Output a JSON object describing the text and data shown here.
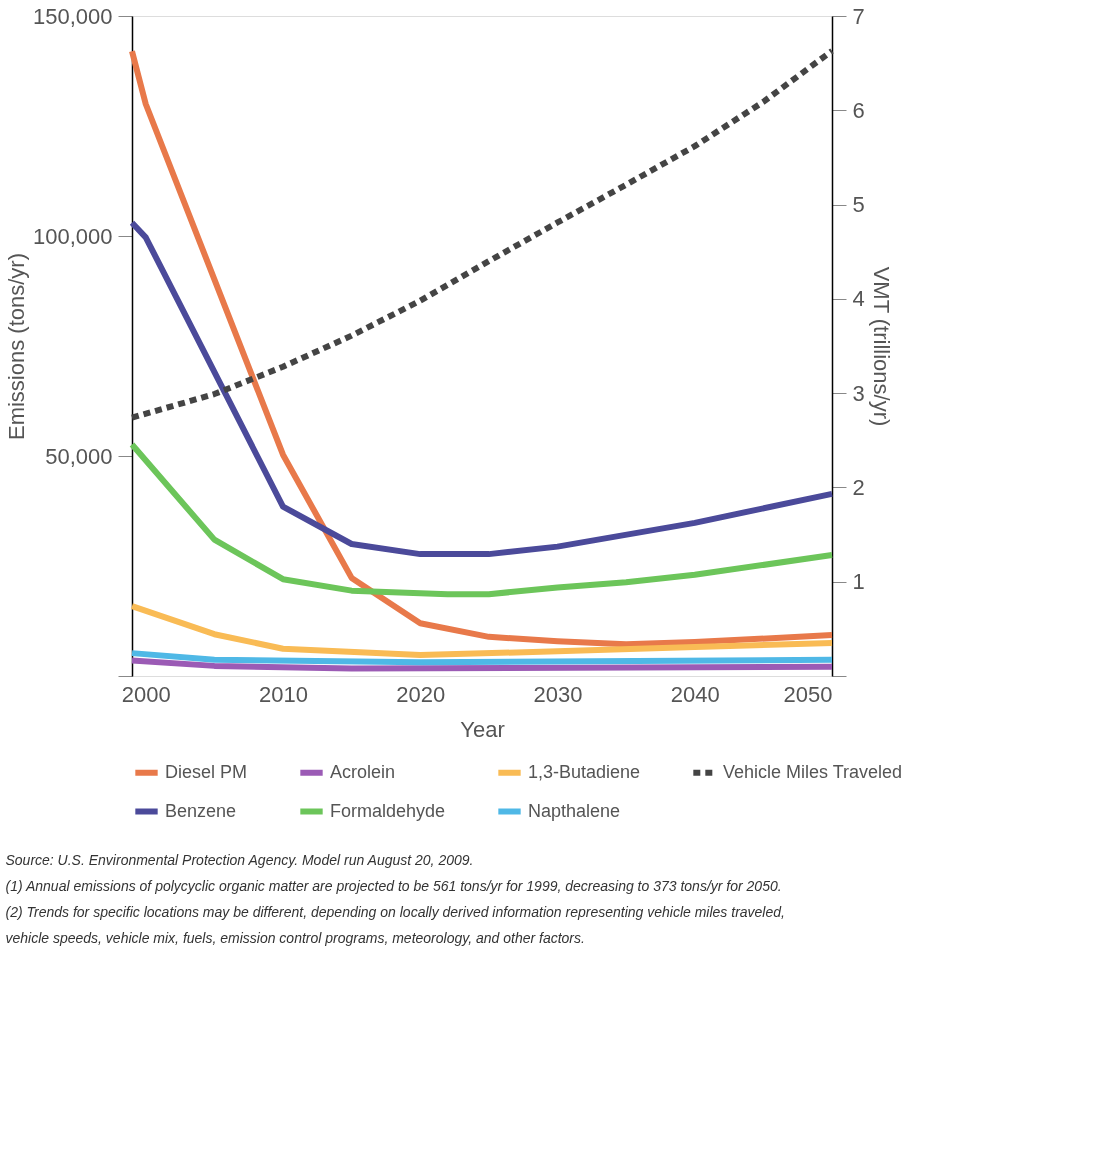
{
  "chart_data": {
    "type": "line",
    "xlabel": "Year",
    "ylabel": "Emissions (tons/yr)",
    "y2label": "VMT (trillions/yr)",
    "xlim": [
      1999,
      2050
    ],
    "xticks": [
      2000,
      2010,
      2020,
      2030,
      2040,
      2050
    ],
    "ylim": [
      0,
      150000
    ],
    "yticks": [
      {
        "value": 0,
        "label": null
      },
      {
        "value": 50000,
        "label": "50,000"
      },
      {
        "value": 100000,
        "label": "100,000"
      },
      {
        "value": 150000,
        "label": "150,000"
      }
    ],
    "y2lim": [
      0,
      7
    ],
    "y2ticks": [
      {
        "value": 0,
        "label": null
      },
      1,
      2,
      3,
      4,
      5,
      6,
      7
    ],
    "grid": false,
    "legend": "bottom",
    "line_style": "solid",
    "marker": "none",
    "series": [
      {
        "name": "Diesel PM",
        "color": "#e8794a",
        "x": [
          1999,
          2000,
          2010,
          2015,
          2020,
          2025,
          2030,
          2035,
          2040,
          2050
        ],
        "values": [
          142000,
          130000,
          50300,
          22300,
          12000,
          8900,
          7900,
          7200,
          7700,
          9300
        ]
      },
      {
        "name": "Acrolein",
        "color": "#9b5bb5",
        "x": [
          1999,
          2005,
          2015,
          2050
        ],
        "values": [
          3500,
          2300,
          1700,
          2100
        ]
      },
      {
        "name": "1,3-Butadiene",
        "color": "#f9bb55",
        "x": [
          1999,
          2005,
          2010,
          2020,
          2030,
          2040,
          2050
        ],
        "values": [
          15900,
          9500,
          6200,
          4800,
          5600,
          6600,
          7500
        ]
      },
      {
        "name": "Vehicle Miles Traveled",
        "color": "#444444",
        "axis": "y2",
        "line_style": "dashed",
        "x": [
          1999,
          2005,
          2010,
          2015,
          2020,
          2025,
          2030,
          2035,
          2040,
          2045,
          2050
        ],
        "values": [
          2.74,
          2.99,
          3.28,
          3.61,
          3.98,
          4.4,
          4.81,
          5.21,
          5.62,
          6.09,
          6.63
        ]
      },
      {
        "name": "Benzene",
        "color": "#4b4a9a",
        "x": [
          1999,
          2000,
          2010,
          2015,
          2020,
          2025,
          2030,
          2040,
          2050
        ],
        "values": [
          103000,
          99700,
          38500,
          30000,
          27700,
          27700,
          29400,
          34800,
          41400
        ]
      },
      {
        "name": "Formaldehyde",
        "color": "#6cc55a",
        "x": [
          1999,
          2005,
          2010,
          2015,
          2022,
          2025,
          2030,
          2035,
          2040,
          2050
        ],
        "values": [
          52600,
          31000,
          22000,
          19400,
          18600,
          18600,
          20100,
          21300,
          23000,
          27500
        ]
      },
      {
        "name": "Napthalene",
        "color": "#4fb8e6",
        "x": [
          1999,
          2005,
          2020,
          2050
        ],
        "values": [
          5200,
          3700,
          3100,
          3700
        ]
      }
    ],
    "annotations": [
      "Source: U.S. Environmental Protection Agency. Model run August 20, 2009.",
      "(1) Annual emissions of polycyclic organic matter are projected to be 561 tons/yr for 1999, decreasing to 373 tons/yr for 2050.",
      "(2) Trends for specific locations may be different, depending on locally derived information representing vehicle miles traveled,",
      "vehicle speeds, vehicle mix, fuels, emission control programs, meteorology, and other factors."
    ]
  }
}
